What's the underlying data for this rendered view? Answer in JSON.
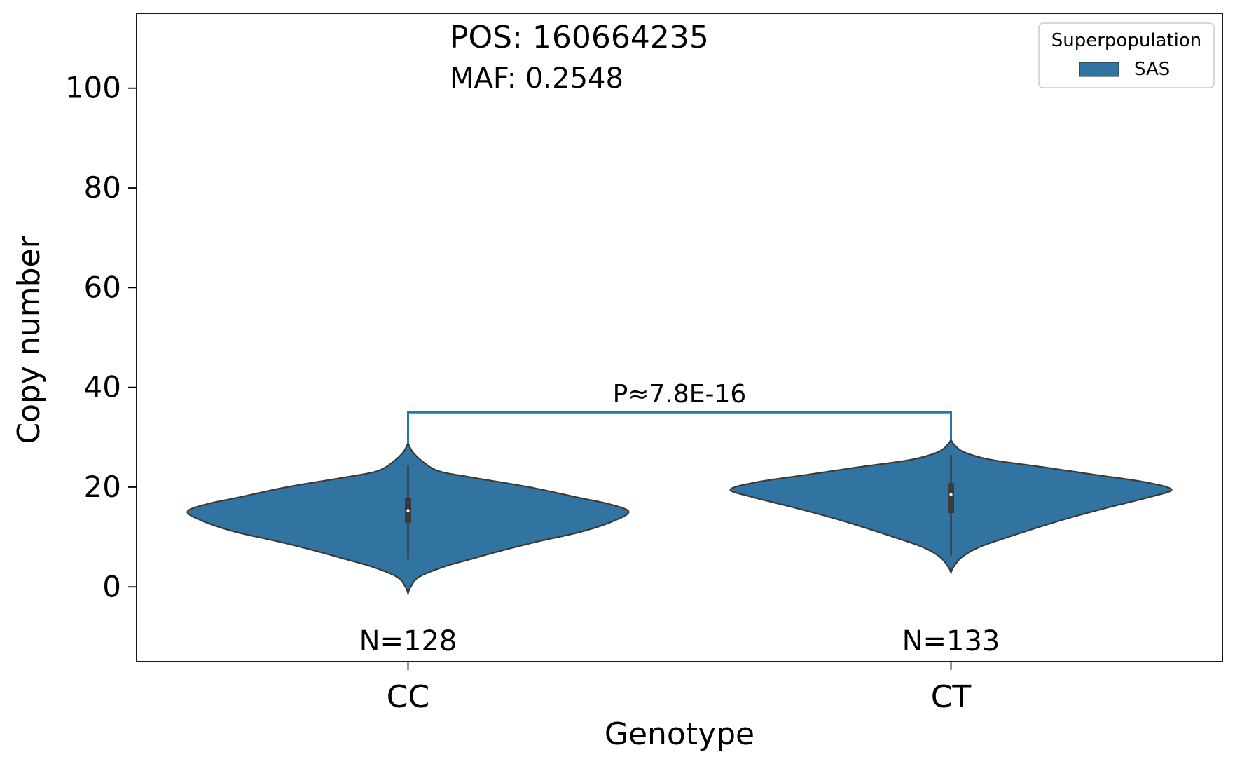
{
  "chart_data": {
    "type": "violin",
    "annotations": {
      "position": "POS: 160664235",
      "maf": "MAF: 0.2548",
      "pvalue": "P≈7.8E-16"
    },
    "xlabel": "Genotype",
    "ylabel": "Copy number",
    "ylim": [
      -15,
      115
    ],
    "yticks": [
      0,
      20,
      40,
      60,
      80,
      100
    ],
    "categories": [
      "CC",
      "CT"
    ],
    "legend": {
      "title": "Superpopulation",
      "placement": "top-right",
      "entries": [
        {
          "name": "SAS",
          "color": "#3274a1"
        }
      ]
    },
    "series": [
      {
        "name": "SAS",
        "color": "#3274a1",
        "violins": [
          {
            "category": "CC",
            "n_label": "N=128",
            "box": {
              "whisker_low": 5.5,
              "q1": 12.8,
              "median": 15.3,
              "q3": 17.8,
              "whisker_high": 24.3
            },
            "profile": [
              [
                -1.3,
                0.0
              ],
              [
                0.0,
                0.012
              ],
              [
                2.0,
                0.05
              ],
              [
                4.0,
                0.16
              ],
              [
                5.5,
                0.28
              ],
              [
                7.0,
                0.4
              ],
              [
                9.0,
                0.58
              ],
              [
                11.0,
                0.78
              ],
              [
                13.0,
                0.92
              ],
              [
                15.0,
                1.0
              ],
              [
                16.5,
                0.92
              ],
              [
                18.0,
                0.76
              ],
              [
                20.0,
                0.55
              ],
              [
                22.0,
                0.28
              ],
              [
                23.2,
                0.14
              ],
              [
                25.0,
                0.07
              ],
              [
                27.0,
                0.022
              ],
              [
                28.8,
                0.0
              ]
            ]
          },
          {
            "category": "CT",
            "n_label": "N=133",
            "box": {
              "whisker_low": 6.3,
              "q1": 14.8,
              "median": 18.5,
              "q3": 20.8,
              "whisker_high": 26.4
            },
            "profile": [
              [
                2.9,
                0.0
              ],
              [
                4.0,
                0.012
              ],
              [
                6.0,
                0.05
              ],
              [
                8.0,
                0.13
              ],
              [
                10.0,
                0.26
              ],
              [
                12.0,
                0.4
              ],
              [
                14.0,
                0.55
              ],
              [
                16.0,
                0.72
              ],
              [
                18.0,
                0.9
              ],
              [
                19.5,
                1.0
              ],
              [
                21.0,
                0.88
              ],
              [
                22.5,
                0.65
              ],
              [
                24.0,
                0.42
              ],
              [
                25.5,
                0.18
              ],
              [
                27.0,
                0.06
              ],
              [
                28.5,
                0.015
              ],
              [
                29.5,
                0.0
              ]
            ]
          }
        ]
      }
    ],
    "grid": false
  }
}
